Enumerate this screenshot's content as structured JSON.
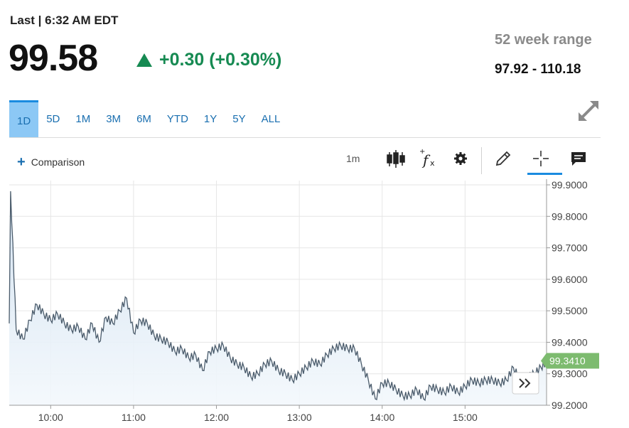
{
  "quote": {
    "last_label": "Last | 6:32 AM EDT",
    "price": "99.58",
    "change": "+0.30 (+0.30%)",
    "range_label": "52 week range",
    "range_value": "97.92 - 110.18"
  },
  "periods": [
    "1D",
    "5D",
    "1M",
    "3M",
    "6M",
    "YTD",
    "1Y",
    "5Y",
    "ALL"
  ],
  "active_period": "1D",
  "toolbar": {
    "comparison_label": "Comparison",
    "interval_label": "1m"
  },
  "colors": {
    "up": "#168a52",
    "accent": "#1a8be0",
    "line": "#4a5b6b",
    "area": "#e8f1f9",
    "last_badge": "#7dbb6f"
  },
  "chart_data": {
    "type": "area",
    "xlabel": "",
    "ylabel": "",
    "xlim": [
      "09:30",
      "15:59"
    ],
    "ylim": [
      99.2,
      99.9
    ],
    "x_ticks": [
      "10:00",
      "11:00",
      "12:00",
      "13:00",
      "14:00",
      "15:00"
    ],
    "y_ticks": [
      "99.9000",
      "99.8000",
      "99.7000",
      "99.6000",
      "99.5000",
      "99.4000",
      "99.3000",
      "99.2000"
    ],
    "last_value_label": "99.3410",
    "grid": true,
    "series": [
      {
        "x": [
          "09:30",
          "09:31",
          "09:35",
          "09:40",
          "09:45",
          "09:50",
          "09:55",
          "10:00",
          "10:05",
          "10:10",
          "10:15",
          "10:20",
          "10:25",
          "10:30",
          "10:35",
          "10:40",
          "10:45",
          "10:50",
          "10:55",
          "11:00",
          "11:05",
          "11:10",
          "11:15",
          "11:20",
          "11:25",
          "11:30",
          "11:35",
          "11:40",
          "11:45",
          "11:50",
          "11:55",
          "12:00",
          "12:05",
          "12:10",
          "12:15",
          "12:20",
          "12:25",
          "12:30",
          "12:35",
          "12:40",
          "12:45",
          "12:50",
          "12:55",
          "13:00",
          "13:05",
          "13:10",
          "13:15",
          "13:20",
          "13:25",
          "13:30",
          "13:35",
          "13:40",
          "13:45",
          "13:50",
          "13:55",
          "14:00",
          "14:05",
          "14:10",
          "14:15",
          "14:20",
          "14:25",
          "14:30",
          "14:35",
          "14:40",
          "14:45",
          "14:50",
          "14:55",
          "15:00",
          "15:05",
          "15:10",
          "15:15",
          "15:20",
          "15:25",
          "15:30",
          "15:35",
          "15:40",
          "15:45",
          "15:50",
          "15:55",
          "15:59"
        ],
        "y": [
          99.46,
          99.88,
          99.44,
          99.41,
          99.47,
          99.52,
          99.49,
          99.47,
          99.49,
          99.46,
          99.44,
          99.45,
          99.41,
          99.46,
          99.4,
          99.48,
          99.46,
          99.5,
          99.54,
          99.43,
          99.47,
          99.46,
          99.42,
          99.41,
          99.4,
          99.37,
          99.38,
          99.35,
          99.36,
          99.31,
          99.37,
          99.38,
          99.39,
          99.35,
          99.33,
          99.32,
          99.29,
          99.3,
          99.33,
          99.34,
          99.31,
          99.3,
          99.28,
          99.3,
          99.32,
          99.34,
          99.33,
          99.36,
          99.38,
          99.39,
          99.38,
          99.38,
          99.33,
          99.28,
          99.22,
          99.27,
          99.27,
          99.25,
          99.23,
          99.23,
          99.25,
          99.22,
          99.26,
          99.25,
          99.24,
          99.26,
          99.24,
          99.26,
          99.28,
          99.27,
          99.28,
          99.28,
          99.27,
          99.28,
          99.32,
          99.28,
          99.29,
          99.3,
          99.32,
          99.341
        ]
      }
    ]
  }
}
